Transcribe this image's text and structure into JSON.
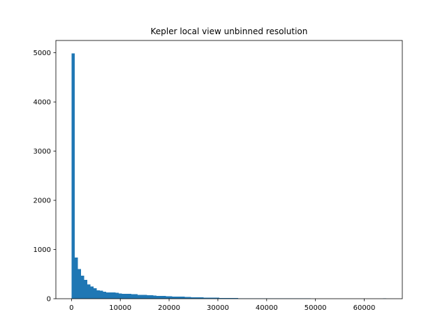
{
  "chart_data": {
    "type": "bar",
    "title": "Kepler local view unbinned resolution",
    "xlabel": "",
    "ylabel": "",
    "xlim": [
      -3200,
      67800
    ],
    "ylim": [
      0,
      5250
    ],
    "grid": false,
    "legend": "none",
    "bar_color": "#1f77b4",
    "bin_start": 0,
    "bin_width": 645,
    "x_ticks": [
      0,
      10000,
      20000,
      30000,
      40000,
      50000,
      60000
    ],
    "x_tick_labels": [
      "0",
      "10000",
      "20000",
      "30000",
      "40000",
      "50000",
      "60000"
    ],
    "y_ticks": [
      0,
      1000,
      2000,
      3000,
      4000,
      5000
    ],
    "y_tick_labels": [
      "0",
      "1000",
      "2000",
      "3000",
      "4000",
      "5000"
    ],
    "values": [
      4990,
      840,
      600,
      470,
      380,
      290,
      250,
      210,
      170,
      160,
      140,
      130,
      130,
      130,
      120,
      110,
      100,
      100,
      100,
      90,
      90,
      80,
      80,
      75,
      70,
      70,
      65,
      60,
      60,
      55,
      50,
      50,
      45,
      45,
      40,
      40,
      35,
      35,
      30,
      30,
      25,
      25,
      20,
      20,
      20,
      18,
      18,
      15,
      15,
      15,
      12,
      12,
      12,
      10,
      10,
      10,
      10,
      8,
      8,
      8,
      8,
      6,
      6,
      6,
      6,
      5,
      5,
      5,
      5,
      5,
      10,
      4,
      4,
      4,
      4,
      4,
      3,
      3,
      3,
      3,
      3,
      3,
      2,
      2,
      2,
      2,
      2,
      2,
      2,
      2,
      2,
      2,
      2,
      2,
      2,
      2,
      2,
      2,
      2,
      10
    ]
  }
}
